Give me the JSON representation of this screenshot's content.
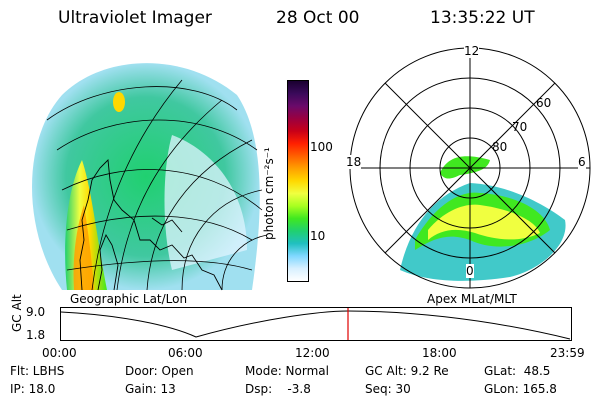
{
  "header": {
    "title": "Ultraviolet Imager",
    "date": "28 Oct 00",
    "time": "13:35:22 UT"
  },
  "globe_panel": {
    "label": "Geographic Lat/Lon"
  },
  "colorbar": {
    "label": "photon cm⁻²s⁻¹",
    "ticks": [
      "100",
      "10"
    ],
    "colors": [
      "#1a0030",
      "#3a0a5a",
      "#6a0a6a",
      "#9a0040",
      "#c80018",
      "#ff2000",
      "#ff6000",
      "#ffa000",
      "#ffd800",
      "#f0ff40",
      "#a8ff20",
      "#40e820",
      "#20d070",
      "#20c0c0",
      "#80d8ff",
      "#d8f0ff",
      "#ffffff"
    ]
  },
  "polar_panel": {
    "label": "Apex MLat/MLT",
    "mlt_labels": {
      "top": "12",
      "left": "18",
      "right": "6",
      "bottom": "0"
    },
    "lat_labels": [
      "60",
      "70",
      "80"
    ]
  },
  "timeline": {
    "axis_label": "GC Alt",
    "y_max": "9.0",
    "y_min": "1.8",
    "ticks": [
      "00:00",
      "06:00",
      "12:00",
      "18:00",
      "23:59"
    ],
    "current_marker_time": "13:35"
  },
  "info": {
    "flt": "Flt: LBHS",
    "ip": "IP: 18.0",
    "door": "Door: Open",
    "gain": "Gain: 13",
    "mode": "Mode: Normal",
    "dsp": "Dsp:    -3.8",
    "gc_alt": "GC Alt: 9.2 Re",
    "seq": "Seq: 30",
    "glat": "GLat:  48.5",
    "glon": "GLon: 165.8"
  }
}
